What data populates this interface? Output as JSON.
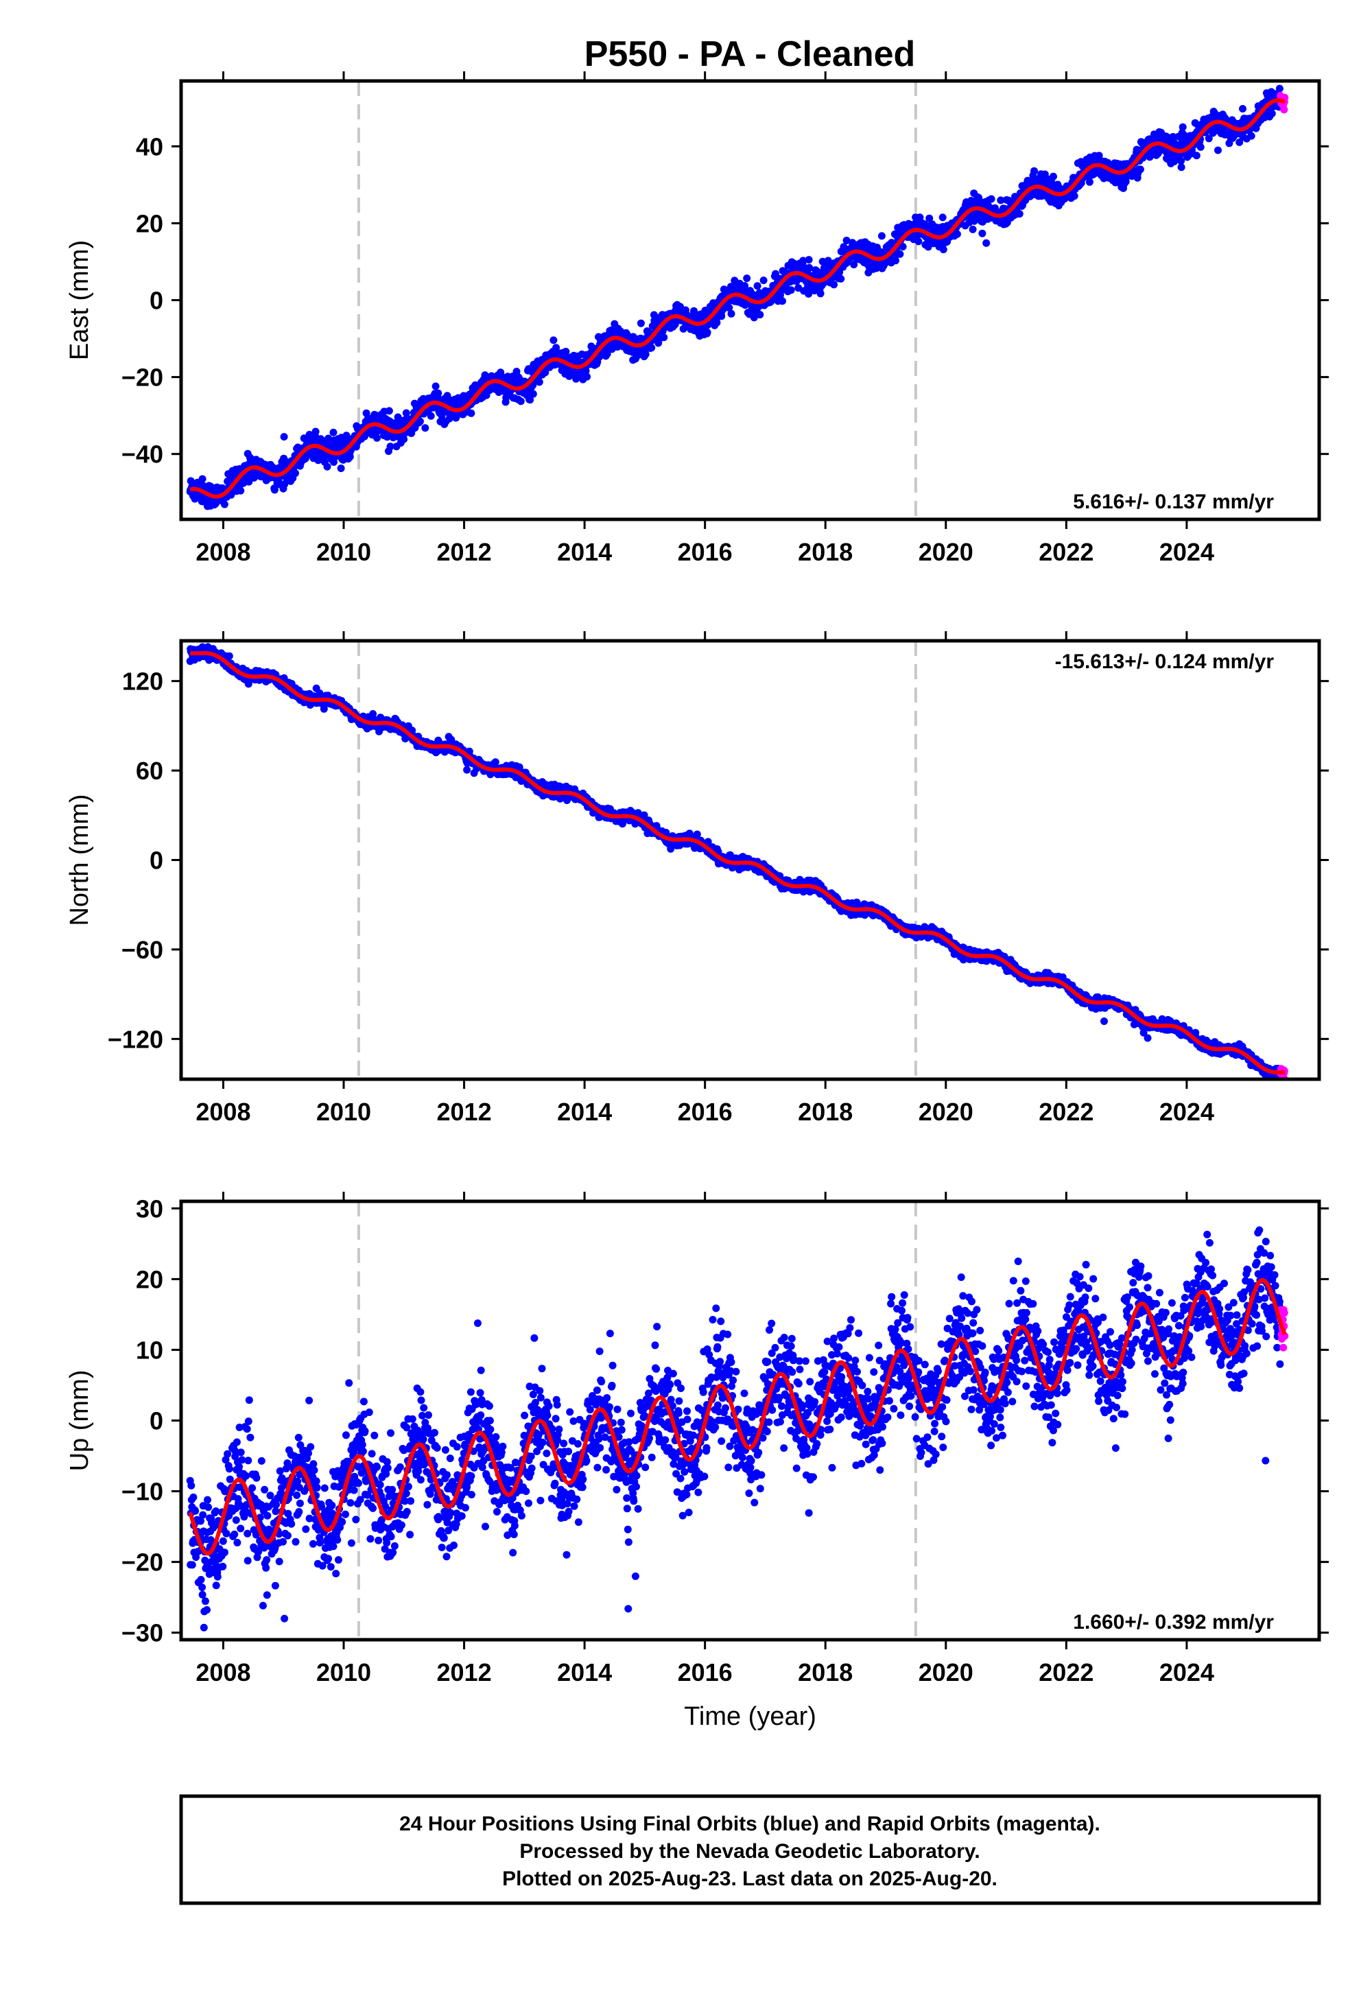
{
  "title": "P550  - PA - Cleaned",
  "colors": {
    "final_orbits": "#0000ff",
    "rapid_orbits": "#ff00ff",
    "model_fit": "#ff0000",
    "break_line": "#c8c8c8"
  },
  "footer": {
    "line1": "24 Hour Positions Using Final Orbits (blue) and Rapid Orbits (magenta).",
    "line2": "Processed by the Nevada Geodetic Laboratory.",
    "line3": "Plotted on 2025-Aug-23. Last data on 2025-Aug-20."
  },
  "chart_data": [
    {
      "type": "scatter",
      "component": "east",
      "ylabel": "East (mm)",
      "xlabel": "",
      "rate_label": "5.616+/- 0.137 mm/yr",
      "rate_position": "bottom-right",
      "x_range": [
        2007.3,
        2026.2
      ],
      "ylim": [
        -57,
        57
      ],
      "x_ticks": [
        2008,
        2010,
        2012,
        2014,
        2016,
        2018,
        2020,
        2022,
        2024
      ],
      "y_ticks": [
        -40,
        -20,
        0,
        20,
        40
      ],
      "break_epochs": [
        2010.25,
        2019.5
      ],
      "data_start": 2007.45,
      "data_end": 2025.63,
      "rapid_start": 2025.55,
      "model": {
        "start_value": -51.5,
        "rate": 5.616,
        "seasonal_amplitude": 2.2,
        "seasonal_phase": 0.2,
        "scatter": 1.6
      },
      "series": [
        {
          "name": "Final Orbits",
          "color": "#0000ff"
        },
        {
          "name": "Rapid Orbits",
          "color": "#ff00ff"
        },
        {
          "name": "Model Fit",
          "color": "#ff0000"
        }
      ]
    },
    {
      "type": "scatter",
      "component": "north",
      "ylabel": "North (mm)",
      "xlabel": "",
      "rate_label": "-15.613+/- 0.124 mm/yr",
      "rate_position": "top-right",
      "x_range": [
        2007.3,
        2026.2
      ],
      "ylim": [
        -147,
        147
      ],
      "x_ticks": [
        2008,
        2010,
        2012,
        2014,
        2016,
        2018,
        2020,
        2022,
        2024
      ],
      "y_ticks": [
        -120,
        -60,
        0,
        60,
        120
      ],
      "break_epochs": [
        2010.25,
        2019.5
      ],
      "data_start": 2007.45,
      "data_end": 2025.63,
      "rapid_start": 2025.55,
      "model": {
        "start_value": 141,
        "rate": -15.613,
        "seasonal_amplitude": 2.8,
        "seasonal_phase": 0.6,
        "scatter": 1.8
      },
      "series": [
        {
          "name": "Final Orbits",
          "color": "#0000ff"
        },
        {
          "name": "Rapid Orbits",
          "color": "#ff00ff"
        },
        {
          "name": "Model Fit",
          "color": "#ff0000"
        }
      ]
    },
    {
      "type": "scatter",
      "component": "up",
      "ylabel": "Up (mm)",
      "xlabel": "Time (year)",
      "rate_label": "1.660+/- 0.392 mm/yr",
      "rate_position": "bottom-right",
      "x_range": [
        2007.3,
        2026.2
      ],
      "ylim": [
        -31,
        31
      ],
      "x_ticks": [
        2008,
        2010,
        2012,
        2014,
        2016,
        2018,
        2020,
        2022,
        2024
      ],
      "y_ticks": [
        -30,
        -20,
        -10,
        0,
        10,
        20,
        30
      ],
      "break_epochs": [
        2010.25,
        2019.5
      ],
      "data_start": 2007.45,
      "data_end": 2025.63,
      "rapid_start": 2025.55,
      "model": {
        "start_value": -14.5,
        "rate": 1.66,
        "seasonal_amplitude": 4.8,
        "seasonal_phase": 0.0,
        "scatter": 3.6
      },
      "series": [
        {
          "name": "Final Orbits",
          "color": "#0000ff"
        },
        {
          "name": "Rapid Orbits",
          "color": "#ff00ff"
        },
        {
          "name": "Model Fit",
          "color": "#ff0000"
        }
      ]
    }
  ]
}
